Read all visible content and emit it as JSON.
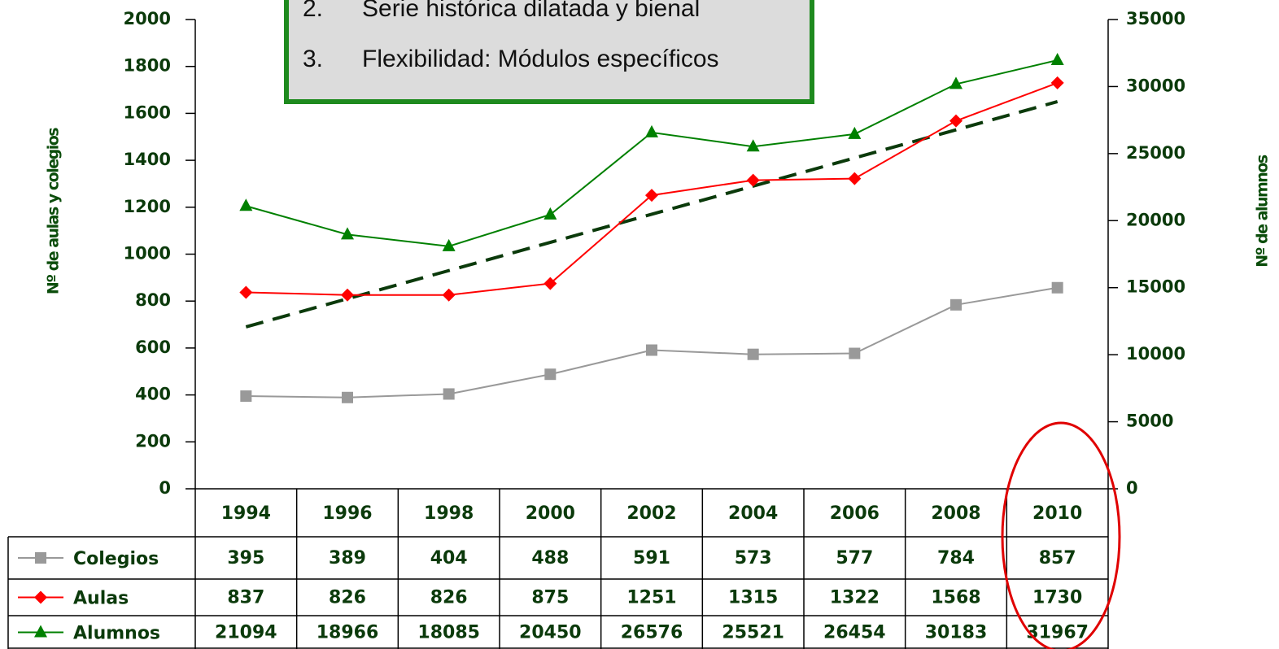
{
  "chart_data": {
    "type": "line",
    "categories": [
      "1994",
      "1996",
      "1998",
      "2000",
      "2002",
      "2004",
      "2006",
      "2008",
      "2010"
    ],
    "series": [
      {
        "name": "Colegios",
        "color": "#999999",
        "marker": "square",
        "values": [
          395,
          389,
          404,
          488,
          591,
          573,
          577,
          784,
          857
        ]
      },
      {
        "name": "Aulas",
        "color": "#ff0000",
        "marker": "diamond",
        "values": [
          837,
          826,
          826,
          875,
          1251,
          1315,
          1322,
          1568,
          1730
        ]
      },
      {
        "name": "Alumnos",
        "color": "#008000",
        "marker": "triangle",
        "axis": "y2",
        "values": [
          21094,
          18966,
          18085,
          20450,
          26576,
          25521,
          26454,
          30183,
          31967
        ]
      }
    ],
    "trendline": {
      "from": 690,
      "to": 1650,
      "color": "#0b3a0b"
    },
    "ylabel": "Nº de aulas y colegios",
    "y2label": "Nº de alumnos",
    "ylim": [
      0,
      2000
    ],
    "yticks": [
      0,
      200,
      400,
      600,
      800,
      1000,
      1200,
      1400,
      1600,
      1800,
      2000
    ],
    "y2lim": [
      0,
      35000
    ],
    "y2ticks": [
      0,
      5000,
      10000,
      15000,
      20000,
      25000,
      30000,
      35000
    ],
    "textbox": [
      {
        "number": "2.",
        "text": "Serie histórica dilatada y bienal"
      },
      {
        "number": "3.",
        "text": "Flexibilidad: Módulos específicos"
      }
    ]
  }
}
